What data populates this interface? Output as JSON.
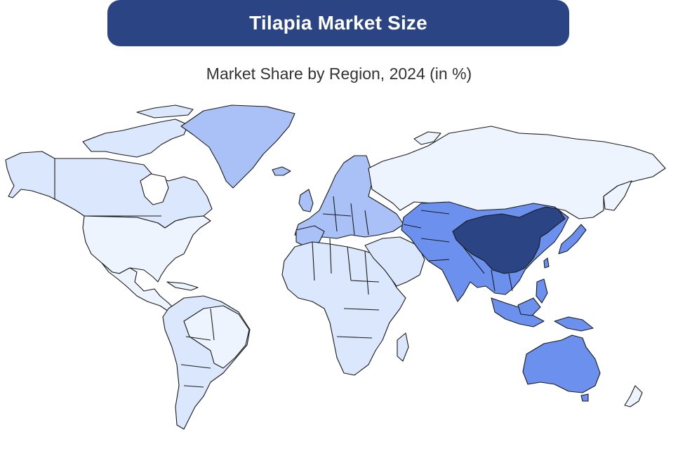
{
  "header": {
    "title": "Tilapia Market Size"
  },
  "map": {
    "subtitle": "Market Share by Region, 2024 (in %)",
    "colors": {
      "lightest": "#eef4fe",
      "light": "#dbe7fc",
      "medium_light": "#a9c1f6",
      "medium": "#6b90ee",
      "dark": "#2b4584"
    },
    "regions": [
      {
        "name": "North America",
        "shade": "lightest"
      },
      {
        "name": "Canada & Alaska",
        "shade": "light"
      },
      {
        "name": "Latin America",
        "shade": "light"
      },
      {
        "name": "Greenland",
        "shade": "medium_light"
      },
      {
        "name": "Europe",
        "shade": "medium_light"
      },
      {
        "name": "Russia",
        "shade": "lightest"
      },
      {
        "name": "Middle East & Africa",
        "shade": "light"
      },
      {
        "name": "Asia Pacific",
        "shade": "medium"
      },
      {
        "name": "China",
        "shade": "dark"
      }
    ]
  }
}
